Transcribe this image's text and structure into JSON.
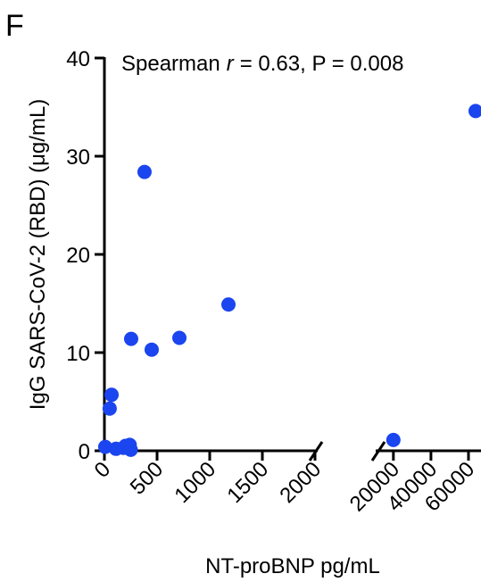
{
  "panel_label": "F",
  "chart_data": {
    "type": "scatter",
    "annotation": {
      "before": "Spearman",
      "italic": "r",
      "after": "= 0.63, P = 0.008"
    },
    "x_label": "NT-proBNP pg/mL",
    "y_label": "IgG SARS-CoV-2 (RBD) (μg/mL)",
    "ylim": [
      0,
      40
    ],
    "yticks": [
      0,
      10,
      20,
      30,
      40
    ],
    "x_segments": [
      {
        "xlim": [
          0,
          2000
        ],
        "xticks": [
          0,
          500,
          1000,
          1500,
          2000
        ]
      },
      {
        "xlim": [
          12000,
          66000
        ],
        "xticks": [
          20000,
          40000,
          60000
        ]
      }
    ],
    "series": [
      {
        "color": "#1a45ef",
        "x": [
          8,
          50,
          68,
          110,
          180,
          200,
          240,
          250,
          254,
          381,
          449,
          712,
          1178,
          20000,
          63800
        ],
        "values": [
          0.4,
          4.3,
          5.7,
          0.2,
          0.3,
          0.5,
          0.6,
          0.1,
          11.4,
          28.4,
          10.3,
          11.5,
          14.9,
          1.1,
          34.6
        ]
      }
    ]
  }
}
